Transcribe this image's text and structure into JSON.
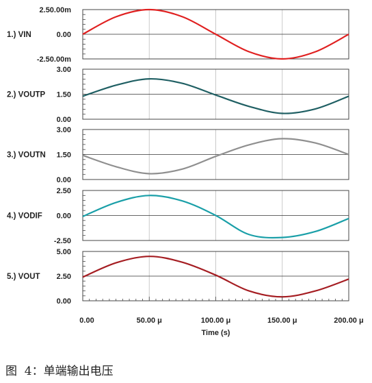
{
  "chart_data": {
    "type": "line",
    "x_range": [
      0,
      200
    ],
    "x_unit": "μs",
    "x_ticks": [
      0,
      50,
      100,
      150,
      200
    ],
    "x_tick_labels": [
      "0.00",
      "50.00 μ",
      "100.00 μ",
      "150.00 μ",
      "200.00 μ"
    ],
    "xlabel": "Time (s)",
    "grid": true,
    "panels": [
      {
        "label": "1.) VIN",
        "color": "#e02020",
        "ylim": [
          -2.5,
          2.5
        ],
        "y_ticks": [
          -2.5,
          0,
          2.5
        ],
        "y_tick_labels": [
          "-2.50.00m",
          "0.00",
          "2.50.00m"
        ],
        "x": [
          0,
          25,
          50,
          75,
          100,
          125,
          150,
          175,
          200
        ],
        "y": [
          0.0,
          1.77,
          2.5,
          1.77,
          0.0,
          -1.77,
          -2.5,
          -1.77,
          0.0
        ]
      },
      {
        "label": "2.) VOUTP",
        "color": "#1f5f63",
        "ylim": [
          0,
          3
        ],
        "y_ticks": [
          0,
          1.5,
          3
        ],
        "y_tick_labels": [
          "0.00",
          "1.50",
          "3.00"
        ],
        "x": [
          0,
          25,
          50,
          75,
          100,
          125,
          150,
          175,
          200
        ],
        "y": [
          1.38,
          2.04,
          2.42,
          2.15,
          1.45,
          0.77,
          0.35,
          0.62,
          1.38
        ]
      },
      {
        "label": "3.) VOUTN",
        "color": "#8f8f8f",
        "ylim": [
          0,
          3
        ],
        "y_ticks": [
          0,
          1.5,
          3
        ],
        "y_tick_labels": [
          "0.00",
          "1.50",
          "3.00"
        ],
        "x": [
          0,
          25,
          50,
          75,
          100,
          125,
          150,
          175,
          200
        ],
        "y": [
          1.45,
          0.77,
          0.35,
          0.63,
          1.39,
          2.08,
          2.45,
          2.19,
          1.5
        ]
      },
      {
        "label": "4.) VODIF",
        "color": "#1a9fa8",
        "ylim": [
          -2.5,
          2.5
        ],
        "y_ticks": [
          -2.5,
          0,
          2.5
        ],
        "y_tick_labels": [
          "-2.50",
          "0.00",
          "2.50"
        ],
        "x": [
          0,
          25,
          50,
          75,
          100,
          125,
          150,
          175,
          200
        ],
        "y": [
          -0.1,
          1.3,
          2.0,
          1.45,
          0.0,
          -1.9,
          -2.2,
          -1.6,
          -0.3
        ]
      },
      {
        "label": "5.) VOUT",
        "color": "#a51d22",
        "ylim": [
          0,
          5
        ],
        "y_ticks": [
          0,
          2.5,
          5
        ],
        "y_tick_labels": [
          "0.00",
          "2.50",
          "5.00"
        ],
        "x": [
          0,
          25,
          50,
          75,
          100,
          125,
          150,
          175,
          200
        ],
        "y": [
          2.4,
          3.85,
          4.5,
          3.9,
          2.6,
          1.0,
          0.4,
          1.0,
          2.2
        ]
      }
    ]
  },
  "caption": "图  4：单端输出电压"
}
